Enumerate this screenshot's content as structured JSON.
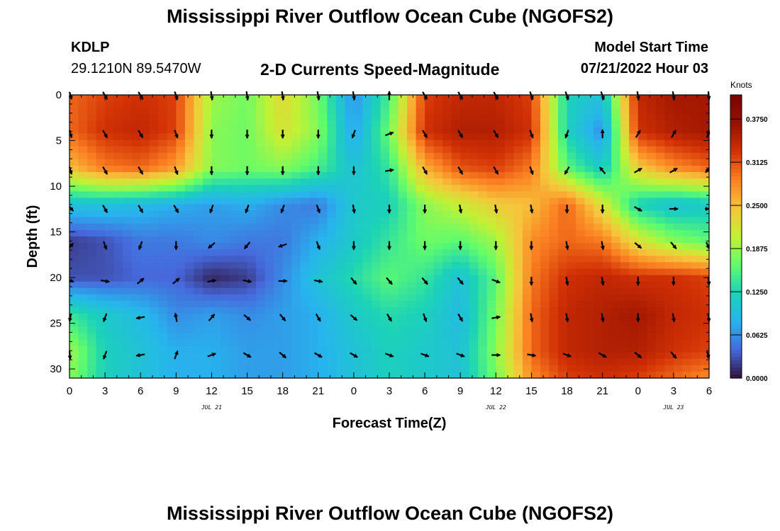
{
  "page": {
    "title_top": "Mississippi River Outflow Ocean Cube (NGOFS2)",
    "title_bottom": "Mississippi River Outflow Ocean Cube (NGOFS2)",
    "station_id": "KDLP",
    "station_coords": "29.1210N  89.5470W",
    "plot_subtitle": "2-D Currents Speed-Magnitude",
    "model_start_label": "Model Start Time",
    "model_start_value": "07/21/2022 Hour 03"
  },
  "chart_data": {
    "type": "heatmap",
    "xlabel": "Forecast Time(Z)",
    "ylabel": "Depth (ft)",
    "x_ticks": [
      "0",
      "3",
      "6",
      "9",
      "12",
      "15",
      "18",
      "21",
      "0",
      "3",
      "6",
      "9",
      "12",
      "15",
      "18",
      "21",
      "0",
      "3",
      "6"
    ],
    "date_labels": [
      {
        "label": "JUL 21",
        "at_tick": 4
      },
      {
        "label": "JUL 22",
        "at_tick": 12
      },
      {
        "label": "JUL 23",
        "at_tick": 17
      }
    ],
    "y_ticks": [
      0,
      5,
      10,
      15,
      20,
      25,
      30
    ],
    "ylim": [
      0,
      31
    ],
    "xlim_hours": [
      0,
      54
    ],
    "colorbar": {
      "units": "Knots",
      "ticks": [
        "0.0000",
        "0.0625",
        "0.1250",
        "0.1875",
        "0.2500",
        "0.3125",
        "0.3750"
      ],
      "range": [
        0,
        0.41
      ]
    },
    "grid_times_hours": [
      0,
      3,
      6,
      9,
      12,
      15,
      18,
      21,
      24,
      27,
      30,
      33,
      36,
      39,
      42,
      45,
      48,
      51,
      54
    ],
    "grid_depths_ft": [
      0,
      4,
      8,
      12,
      16,
      20,
      24,
      28,
      31
    ],
    "speed_knots": [
      [
        0.3,
        0.32,
        0.33,
        0.32,
        0.19,
        0.17,
        0.23,
        0.17,
        0.06,
        0.15,
        0.32,
        0.34,
        0.34,
        0.32,
        0.12,
        0.1,
        0.34,
        0.36,
        0.36
      ],
      [
        0.3,
        0.33,
        0.34,
        0.32,
        0.18,
        0.17,
        0.22,
        0.18,
        0.07,
        0.17,
        0.33,
        0.35,
        0.35,
        0.33,
        0.12,
        0.06,
        0.33,
        0.35,
        0.36
      ],
      [
        0.25,
        0.29,
        0.3,
        0.27,
        0.18,
        0.17,
        0.18,
        0.15,
        0.1,
        0.14,
        0.26,
        0.31,
        0.32,
        0.29,
        0.16,
        0.11,
        0.24,
        0.28,
        0.3
      ],
      [
        0.1,
        0.1,
        0.09,
        0.08,
        0.07,
        0.08,
        0.06,
        0.05,
        0.11,
        0.12,
        0.18,
        0.21,
        0.24,
        0.25,
        0.3,
        0.22,
        0.12,
        0.1,
        0.11
      ],
      [
        0.02,
        0.03,
        0.05,
        0.05,
        0.06,
        0.05,
        0.05,
        0.08,
        0.11,
        0.14,
        0.17,
        0.16,
        0.19,
        0.28,
        0.3,
        0.29,
        0.22,
        0.18,
        0.16
      ],
      [
        0.03,
        0.03,
        0.04,
        0.04,
        0.01,
        0.02,
        0.06,
        0.1,
        0.13,
        0.16,
        0.14,
        0.1,
        0.16,
        0.29,
        0.33,
        0.34,
        0.33,
        0.33,
        0.32
      ],
      [
        0.14,
        0.11,
        0.09,
        0.06,
        0.07,
        0.06,
        0.07,
        0.08,
        0.11,
        0.13,
        0.12,
        0.09,
        0.17,
        0.3,
        0.34,
        0.35,
        0.36,
        0.34,
        0.33
      ],
      [
        0.19,
        0.12,
        0.1,
        0.08,
        0.08,
        0.07,
        0.07,
        0.08,
        0.1,
        0.12,
        0.11,
        0.1,
        0.18,
        0.3,
        0.34,
        0.35,
        0.35,
        0.33,
        0.32
      ],
      [
        0.18,
        0.12,
        0.1,
        0.08,
        0.08,
        0.07,
        0.07,
        0.08,
        0.1,
        0.12,
        0.11,
        0.1,
        0.17,
        0.28,
        0.32,
        0.33,
        0.32,
        0.3,
        0.28
      ]
    ],
    "arrow_times_hours": [
      0,
      3,
      6,
      9,
      12,
      15,
      18,
      21,
      24,
      27,
      30,
      33,
      36,
      39,
      42,
      45,
      48,
      51,
      54
    ],
    "arrow_depths_ft": [
      0,
      4.2,
      8.2,
      12.4,
      16.4,
      20.3,
      24.3,
      28.4
    ],
    "arrow_dir_deg": [
      [
        150,
        150,
        150,
        160,
        170,
        170,
        170,
        170,
        170,
        0,
        150,
        150,
        150,
        160,
        160,
        160,
        170,
        170,
        170
      ],
      [
        150,
        150,
        150,
        160,
        180,
        180,
        180,
        180,
        200,
        70,
        150,
        150,
        150,
        160,
        200,
        0,
        30,
        30,
        30
      ],
      [
        150,
        150,
        150,
        160,
        180,
        180,
        180,
        180,
        180,
        80,
        150,
        150,
        150,
        160,
        210,
        320,
        60,
        60,
        60
      ],
      [
        120,
        150,
        150,
        150,
        200,
        200,
        200,
        160,
        170,
        180,
        180,
        170,
        170,
        170,
        180,
        180,
        120,
        90,
        90
      ],
      [
        60,
        160,
        200,
        180,
        230,
        220,
        250,
        160,
        180,
        180,
        180,
        180,
        180,
        180,
        170,
        170,
        130,
        140,
        140
      ],
      [
        100,
        100,
        50,
        50,
        80,
        100,
        90,
        100,
        140,
        140,
        140,
        140,
        110,
        180,
        170,
        170,
        180,
        180,
        170
      ],
      [
        200,
        200,
        260,
        350,
        40,
        130,
        140,
        150,
        130,
        150,
        160,
        150,
        80,
        170,
        170,
        170,
        180,
        170,
        170
      ],
      [
        170,
        200,
        260,
        20,
        70,
        120,
        130,
        120,
        120,
        110,
        110,
        110,
        90,
        100,
        110,
        120,
        130,
        140,
        150
      ]
    ],
    "colormap": [
      "#30123b",
      "#4669dc",
      "#27b4ee",
      "#1bd2b8",
      "#61fc6c",
      "#c3f134",
      "#f6c53b",
      "#fb8022",
      "#d23105",
      "#961101",
      "#7a0403"
    ]
  }
}
